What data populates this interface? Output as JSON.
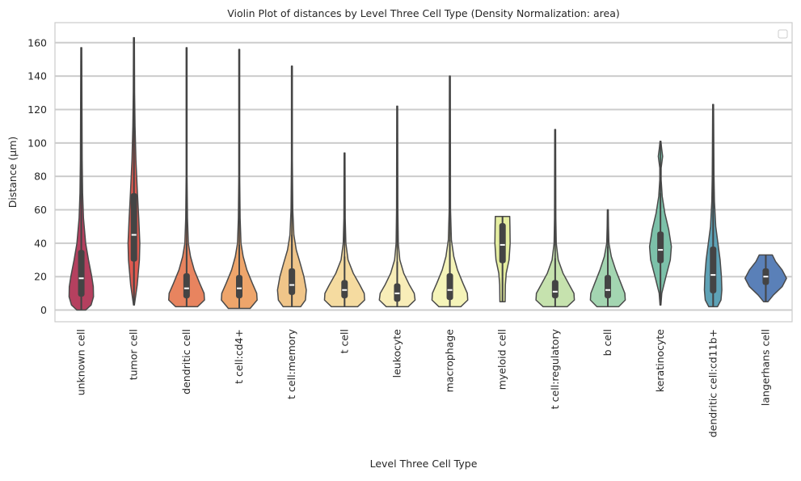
{
  "chart_data": {
    "type": "violin",
    "title": "Violin Plot of distances by Level Three Cell Type (Density Normalization: area)",
    "xlabel": "Level Three Cell Type",
    "ylabel": "Distance (µm)",
    "ylim": [
      -7,
      172
    ],
    "yticks": [
      0,
      20,
      40,
      60,
      80,
      100,
      120,
      140,
      160
    ],
    "grid": "horizontal",
    "legend": {
      "placement": "top-right",
      "entries": []
    },
    "categories": [
      "unknown cell",
      "tumor cell",
      "dendritic cell",
      "t cell:cd4+",
      "t cell:memory",
      "t cell",
      "leukocyte",
      "macrophage",
      "myeloid cell",
      "t cell:regulatory",
      "b cell",
      "keratinocyte",
      "dendritic cell:cd11b+",
      "langerhans cell"
    ],
    "series": [
      {
        "name": "unknown cell",
        "color": "#b5405f",
        "min": 0,
        "max": 157,
        "q1": 8,
        "median": 19,
        "q3": 36,
        "whisker_high": 80,
        "density": [
          [
            0,
            0.2
          ],
          [
            3,
            0.45
          ],
          [
            8,
            0.56
          ],
          [
            14,
            0.55
          ],
          [
            20,
            0.48
          ],
          [
            30,
            0.33
          ],
          [
            40,
            0.2
          ],
          [
            55,
            0.1
          ],
          [
            70,
            0.06
          ],
          [
            90,
            0.04
          ],
          [
            157,
            0.02
          ]
        ]
      },
      {
        "name": "tumor cell",
        "color": "#de5a50",
        "min": 3,
        "max": 163,
        "q1": 29,
        "median": 45,
        "q3": 70,
        "whisker_high": 130,
        "density": [
          [
            3,
            0.02
          ],
          [
            15,
            0.15
          ],
          [
            30,
            0.25
          ],
          [
            40,
            0.27
          ],
          [
            55,
            0.22
          ],
          [
            70,
            0.16
          ],
          [
            90,
            0.09
          ],
          [
            110,
            0.05
          ],
          [
            130,
            0.03
          ],
          [
            163,
            0.02
          ]
        ]
      },
      {
        "name": "dendritic cell",
        "color": "#e8845f",
        "min": 2,
        "max": 157,
        "q1": 7,
        "median": 13,
        "q3": 22,
        "whisker_high": 40,
        "density": [
          [
            2,
            0.5
          ],
          [
            6,
            0.82
          ],
          [
            10,
            0.8
          ],
          [
            16,
            0.6
          ],
          [
            24,
            0.35
          ],
          [
            32,
            0.18
          ],
          [
            40,
            0.08
          ],
          [
            55,
            0.04
          ],
          [
            80,
            0.02
          ],
          [
            157,
            0.02
          ]
        ]
      },
      {
        "name": "t cell:cd4+",
        "color": "#eea56b",
        "min": 1,
        "max": 156,
        "q1": 7,
        "median": 13,
        "q3": 21,
        "whisker_high": 39,
        "density": [
          [
            1,
            0.5
          ],
          [
            6,
            0.82
          ],
          [
            10,
            0.8
          ],
          [
            16,
            0.6
          ],
          [
            24,
            0.35
          ],
          [
            32,
            0.18
          ],
          [
            40,
            0.08
          ],
          [
            55,
            0.04
          ],
          [
            80,
            0.02
          ],
          [
            156,
            0.02
          ]
        ]
      },
      {
        "name": "t cell:memory",
        "color": "#f0c589",
        "min": 2,
        "max": 146,
        "q1": 9,
        "median": 15,
        "q3": 25,
        "whisker_high": 45,
        "density": [
          [
            2,
            0.4
          ],
          [
            6,
            0.62
          ],
          [
            12,
            0.66
          ],
          [
            20,
            0.55
          ],
          [
            28,
            0.38
          ],
          [
            36,
            0.2
          ],
          [
            45,
            0.09
          ],
          [
            60,
            0.04
          ],
          [
            90,
            0.02
          ],
          [
            146,
            0.02
          ]
        ]
      },
      {
        "name": "t cell",
        "color": "#f5dba0",
        "min": 2,
        "max": 94,
        "q1": 7,
        "median": 12,
        "q3": 18,
        "whisker_high": 32,
        "density": [
          [
            2,
            0.6
          ],
          [
            6,
            0.92
          ],
          [
            10,
            0.9
          ],
          [
            15,
            0.7
          ],
          [
            22,
            0.4
          ],
          [
            30,
            0.16
          ],
          [
            40,
            0.06
          ],
          [
            55,
            0.03
          ],
          [
            94,
            0.02
          ]
        ]
      },
      {
        "name": "leukocyte",
        "color": "#f8edb8",
        "min": 2,
        "max": 122,
        "q1": 5,
        "median": 10,
        "q3": 16,
        "whisker_high": 29,
        "density": [
          [
            2,
            0.5
          ],
          [
            6,
            0.82
          ],
          [
            10,
            0.78
          ],
          [
            15,
            0.56
          ],
          [
            22,
            0.3
          ],
          [
            30,
            0.12
          ],
          [
            40,
            0.05
          ],
          [
            60,
            0.03
          ],
          [
            122,
            0.02
          ]
        ]
      },
      {
        "name": "macrophage",
        "color": "#f5f4b9",
        "min": 2,
        "max": 140,
        "q1": 6,
        "median": 12,
        "q3": 22,
        "whisker_high": 42,
        "density": [
          [
            2,
            0.5
          ],
          [
            6,
            0.82
          ],
          [
            10,
            0.8
          ],
          [
            16,
            0.6
          ],
          [
            24,
            0.35
          ],
          [
            32,
            0.18
          ],
          [
            42,
            0.07
          ],
          [
            60,
            0.03
          ],
          [
            140,
            0.02
          ]
        ]
      },
      {
        "name": "myeloid cell",
        "color": "#e5eea1",
        "min": 5,
        "max": 56,
        "q1": 28,
        "median": 39,
        "q3": 52,
        "whisker_high": 56,
        "density": [
          [
            5,
            0.12
          ],
          [
            15,
            0.13
          ],
          [
            22,
            0.17
          ],
          [
            30,
            0.3
          ],
          [
            40,
            0.35
          ],
          [
            50,
            0.34
          ],
          [
            56,
            0.33
          ]
        ]
      },
      {
        "name": "t cell:regulatory",
        "color": "#c6e2ae",
        "min": 2,
        "max": 108,
        "q1": 7,
        "median": 11,
        "q3": 18,
        "whisker_high": 31,
        "density": [
          [
            2,
            0.55
          ],
          [
            6,
            0.88
          ],
          [
            10,
            0.86
          ],
          [
            15,
            0.65
          ],
          [
            22,
            0.36
          ],
          [
            30,
            0.14
          ],
          [
            40,
            0.05
          ],
          [
            55,
            0.03
          ],
          [
            108,
            0.02
          ]
        ]
      },
      {
        "name": "b cell",
        "color": "#a3d5b1",
        "min": 2,
        "max": 60,
        "q1": 7,
        "median": 12,
        "q3": 21,
        "whisker_high": 38,
        "density": [
          [
            2,
            0.5
          ],
          [
            6,
            0.8
          ],
          [
            10,
            0.78
          ],
          [
            16,
            0.6
          ],
          [
            24,
            0.36
          ],
          [
            32,
            0.16
          ],
          [
            40,
            0.05
          ],
          [
            50,
            0.03
          ],
          [
            60,
            0.02
          ]
        ]
      },
      {
        "name": "keratinocyte",
        "color": "#7cc1a9",
        "min": 3,
        "max": 101,
        "q1": 28,
        "median": 36,
        "q3": 47,
        "whisker_high": 70,
        "density": [
          [
            3,
            0.02
          ],
          [
            10,
            0.06
          ],
          [
            20,
            0.25
          ],
          [
            30,
            0.45
          ],
          [
            38,
            0.5
          ],
          [
            48,
            0.38
          ],
          [
            58,
            0.2
          ],
          [
            68,
            0.08
          ],
          [
            78,
            0.03
          ],
          [
            85,
            0.03
          ],
          [
            92,
            0.1
          ],
          [
            97,
            0.05
          ],
          [
            101,
            0.02
          ]
        ]
      },
      {
        "name": "dendritic cell:cd11b+",
        "color": "#5ea2b6",
        "min": 2,
        "max": 123,
        "q1": 10,
        "median": 21,
        "q3": 38,
        "whisker_high": 72,
        "density": [
          [
            2,
            0.2
          ],
          [
            6,
            0.36
          ],
          [
            12,
            0.4
          ],
          [
            20,
            0.38
          ],
          [
            30,
            0.32
          ],
          [
            40,
            0.22
          ],
          [
            50,
            0.12
          ],
          [
            65,
            0.06
          ],
          [
            80,
            0.04
          ],
          [
            123,
            0.02
          ]
        ]
      },
      {
        "name": "langerhans cell",
        "color": "#5a80b8",
        "min": 5,
        "max": 33,
        "q1": 15,
        "median": 20,
        "q3": 25,
        "whisker_high": 33,
        "density": [
          [
            5,
            0.1
          ],
          [
            9,
            0.35
          ],
          [
            14,
            0.75
          ],
          [
            19,
            0.95
          ],
          [
            24,
            0.75
          ],
          [
            29,
            0.45
          ],
          [
            33,
            0.3
          ]
        ]
      }
    ]
  }
}
